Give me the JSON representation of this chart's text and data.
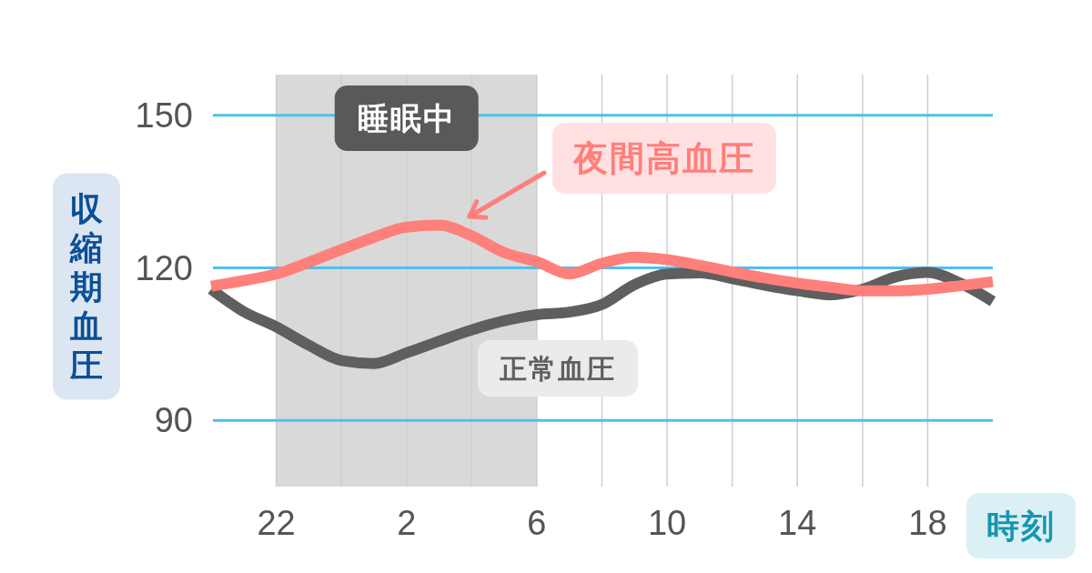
{
  "chart_data": {
    "type": "line",
    "xlabel": "時刻",
    "ylabel": "収縮期血圧",
    "categories": [
      null,
      null,
      "22",
      null,
      null,
      null,
      "2",
      null,
      null,
      null,
      "6",
      null,
      null,
      null,
      "10",
      null,
      null,
      null,
      "14",
      null,
      null,
      null,
      "18",
      null,
      null
    ],
    "ylim": [
      77,
      158
    ],
    "yticks": [
      90,
      120,
      150
    ],
    "grid": true,
    "line_style": "solid",
    "bands": [
      {
        "axis": "x",
        "from": "22",
        "to": "6",
        "label": "睡眠中",
        "color": "#d9d9d9"
      }
    ],
    "series": [
      {
        "name": "正常血圧",
        "color": "#5f5f5f",
        "values": [
          115.8,
          111.4,
          108.4,
          104.8,
          101.8,
          101.2,
          103.3,
          105.6,
          107.8,
          109.6,
          110.8,
          111.3,
          112.8,
          116.7,
          118.8,
          119,
          117.9,
          116.6,
          115.5,
          114.7,
          115.8,
          118.2,
          119.1,
          117,
          113.4
        ]
      },
      {
        "name": "夜間高血圧",
        "color": "#ff7f7a",
        "values": [
          116.4,
          117.5,
          118.8,
          121.1,
          123.6,
          126,
          128,
          128.4,
          126.3,
          123,
          121.2,
          118.8,
          120.9,
          122.1,
          121.6,
          120.5,
          119.2,
          118,
          117,
          116.2,
          115.5,
          115.5,
          115.8,
          116.5,
          117.3
        ]
      }
    ]
  }
}
